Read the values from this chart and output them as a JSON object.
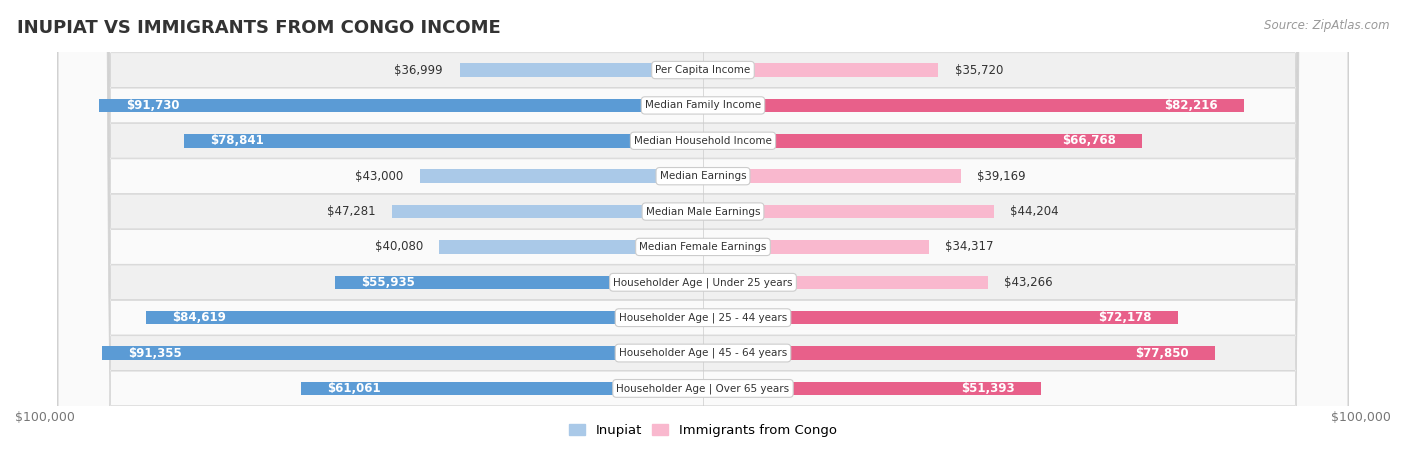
{
  "title": "INUPIAT VS IMMIGRANTS FROM CONGO INCOME",
  "source": "Source: ZipAtlas.com",
  "categories": [
    "Per Capita Income",
    "Median Family Income",
    "Median Household Income",
    "Median Earnings",
    "Median Male Earnings",
    "Median Female Earnings",
    "Householder Age | Under 25 years",
    "Householder Age | 25 - 44 years",
    "Householder Age | 45 - 64 years",
    "Householder Age | Over 65 years"
  ],
  "inupiat_values": [
    36999,
    91730,
    78841,
    43000,
    47281,
    40080,
    55935,
    84619,
    91355,
    61061
  ],
  "congo_values": [
    35720,
    82216,
    66768,
    39169,
    44204,
    34317,
    43266,
    72178,
    77850,
    51393
  ],
  "inupiat_labels": [
    "$36,999",
    "$91,730",
    "$78,841",
    "$43,000",
    "$47,281",
    "$40,080",
    "$55,935",
    "$84,619",
    "$91,355",
    "$61,061"
  ],
  "congo_labels": [
    "$35,720",
    "$82,216",
    "$66,768",
    "$39,169",
    "$44,204",
    "$34,317",
    "$43,266",
    "$72,178",
    "$77,850",
    "$51,393"
  ],
  "max_value": 100000,
  "inupiat_color_light": "#aac9e8",
  "inupiat_color_dark": "#5b9bd5",
  "congo_color_light": "#f9b8ce",
  "congo_color_dark": "#e8608a",
  "inupiat_threshold": 50000,
  "congo_threshold": 50000,
  "row_bg_even": "#f0f0f0",
  "row_bg_odd": "#fafafa",
  "title_fontsize": 13,
  "label_fontsize": 8.5,
  "tick_fontsize": 9,
  "legend_fontsize": 9.5
}
